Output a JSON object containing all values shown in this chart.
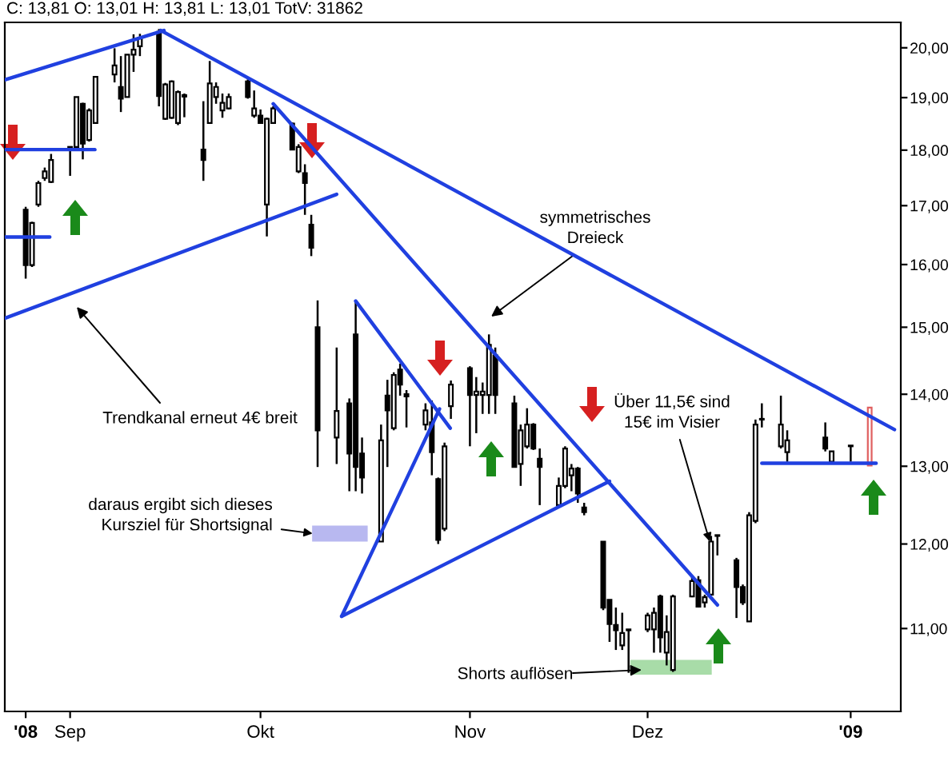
{
  "chart_data": {
    "type": "candlestick",
    "title": "C: 13,81 O: 13,01 H: 13,81 L: 13,01 TotV: 31862",
    "x": [
      "2008-08-25",
      "2008-08-26",
      "2008-08-27",
      "2008-08-28",
      "2008-08-29",
      "2008-09-01",
      "2008-09-02",
      "2008-09-03",
      "2008-09-04",
      "2008-09-05",
      "2008-09-08",
      "2008-09-09",
      "2008-09-10",
      "2008-09-11",
      "2008-09-12",
      "2008-09-15",
      "2008-09-16",
      "2008-09-17",
      "2008-09-18",
      "2008-09-19",
      "2008-09-22",
      "2008-09-23",
      "2008-09-24",
      "2008-09-25",
      "2008-09-26",
      "2008-09-29",
      "2008-09-30",
      "2008-10-01",
      "2008-10-02",
      "2008-10-03",
      "2008-10-06",
      "2008-10-07",
      "2008-10-08",
      "2008-10-09",
      "2008-10-10",
      "2008-10-13",
      "2008-10-15",
      "2008-10-16",
      "2008-10-17",
      "2008-10-20",
      "2008-10-21",
      "2008-10-22",
      "2008-10-23",
      "2008-10-24",
      "2008-10-27",
      "2008-10-28",
      "2008-10-29",
      "2008-10-30",
      "2008-10-31",
      "2008-11-03",
      "2008-11-04",
      "2008-11-05",
      "2008-11-06",
      "2008-11-07",
      "2008-11-10",
      "2008-11-11",
      "2008-11-12",
      "2008-11-13",
      "2008-11-14",
      "2008-11-17",
      "2008-11-18",
      "2008-11-19",
      "2008-11-20",
      "2008-11-21",
      "2008-11-24",
      "2008-11-25",
      "2008-11-26",
      "2008-11-27",
      "2008-11-28",
      "2008-12-01",
      "2008-12-02",
      "2008-12-03",
      "2008-12-04",
      "2008-12-05",
      "2008-12-08",
      "2008-12-09",
      "2008-12-10",
      "2008-12-11",
      "2008-12-12",
      "2008-12-15",
      "2008-12-16",
      "2008-12-17",
      "2008-12-18",
      "2008-12-19",
      "2008-12-22",
      "2008-12-23",
      "2008-12-29",
      "2008-12-30",
      "2009-01-02",
      "2009-01-05"
    ],
    "ohlc": [
      [
        16.93,
        16.98,
        15.77,
        15.99
      ],
      [
        15.99,
        16.72,
        15.96,
        16.7
      ],
      [
        17.02,
        17.44,
        16.98,
        17.4
      ],
      [
        17.49,
        17.68,
        17.44,
        17.61
      ],
      [
        17.42,
        17.93,
        17.4,
        17.82
      ],
      [
        18.04,
        18.07,
        17.53,
        18.06
      ],
      [
        18.06,
        19.01,
        18.04,
        19.01
      ],
      [
        18.88,
        18.9,
        17.83,
        18.12
      ],
      [
        18.19,
        18.79,
        18.16,
        18.75
      ],
      [
        18.51,
        19.41,
        18.5,
        19.41
      ],
      [
        19.46,
        19.99,
        19.3,
        19.64
      ],
      [
        19.21,
        19.83,
        18.72,
        18.98
      ],
      [
        19.01,
        19.86,
        19.01,
        19.86
      ],
      [
        19.86,
        20.28,
        19.51,
        19.96
      ],
      [
        20.03,
        20.29,
        19.83,
        20.21
      ],
      [
        20.33,
        20.39,
        18.83,
        19.03
      ],
      [
        18.59,
        19.29,
        18.57,
        19.26
      ],
      [
        18.61,
        19.34,
        18.59,
        19.32
      ],
      [
        18.51,
        19.14,
        18.47,
        19.11
      ],
      [
        19.02,
        19.08,
        18.62,
        19.05
      ],
      [
        18.01,
        18.93,
        17.44,
        17.82
      ],
      [
        18.51,
        19.73,
        18.5,
        19.28
      ],
      [
        19.01,
        19.3,
        18.88,
        19.21
      ],
      [
        18.75,
        19.08,
        18.61,
        18.9
      ],
      [
        18.79,
        19.08,
        18.77,
        19.01
      ],
      [
        19.32,
        19.36,
        18.98,
        19.01
      ],
      [
        18.65,
        19.14,
        18.61,
        18.79
      ],
      [
        18.65,
        18.77,
        18.5,
        18.51
      ],
      [
        17.02,
        18.61,
        16.47,
        18.59
      ],
      [
        18.51,
        18.83,
        18.5,
        18.79
      ],
      [
        18.5,
        18.52,
        18.0,
        18.01
      ],
      [
        17.61,
        18.11,
        17.58,
        18.06
      ],
      [
        17.58,
        17.74,
        16.84,
        17.4
      ],
      [
        16.67,
        16.84,
        16.14,
        16.28
      ],
      [
        15.0,
        15.42,
        12.99,
        13.49
      ],
      [
        13.39,
        14.69,
        13.03,
        13.76
      ],
      [
        13.87,
        13.94,
        12.67,
        13.17
      ],
      [
        14.89,
        15.42,
        12.67,
        12.99
      ],
      [
        13.17,
        13.39,
        12.64,
        12.85
      ],
      [
        12.03,
        13.57,
        12.03,
        13.35
      ],
      [
        13.98,
        14.21,
        12.99,
        13.77
      ],
      [
        13.52,
        14.32,
        13.49,
        14.28
      ],
      [
        14.36,
        14.45,
        13.98,
        14.14
      ],
      [
        14.0,
        14.06,
        13.53,
        13.97
      ],
      [
        13.57,
        13.87,
        13.49,
        13.77
      ],
      [
        13.6,
        13.91,
        12.88,
        13.19
      ],
      [
        12.83,
        12.85,
        12.0,
        12.05
      ],
      [
        12.19,
        13.32,
        12.16,
        13.27
      ],
      [
        13.83,
        14.2,
        13.65,
        14.14
      ],
      [
        14.38,
        14.41,
        13.27,
        13.99
      ],
      [
        13.99,
        14.25,
        13.45,
        14.04
      ],
      [
        13.99,
        14.17,
        13.72,
        14.04
      ],
      [
        13.99,
        14.89,
        13.72,
        14.73
      ],
      [
        14.57,
        14.69,
        13.72,
        13.99
      ],
      [
        13.87,
        13.98,
        12.99,
        12.99
      ],
      [
        13.03,
        13.57,
        12.74,
        13.49
      ],
      [
        13.27,
        13.8,
        13.24,
        13.57
      ],
      [
        13.57,
        13.59,
        13.22,
        13.24
      ],
      [
        13.1,
        13.24,
        12.49,
        12.99
      ],
      [
        12.49,
        12.85,
        12.46,
        12.74
      ],
      [
        12.74,
        13.27,
        12.71,
        13.24
      ],
      [
        12.88,
        13.03,
        12.67,
        12.97
      ],
      [
        12.97,
        12.99,
        12.52,
        12.64
      ],
      [
        12.46,
        12.52,
        12.36,
        12.4
      ],
      [
        12.03,
        12.03,
        11.21,
        11.24
      ],
      [
        11.33,
        11.33,
        10.85,
        11.05
      ],
      [
        11.04,
        11.24,
        10.76,
        10.98
      ],
      [
        10.81,
        11.18,
        10.76,
        10.95
      ],
      [
        10.98,
        10.99,
        10.51,
        10.99
      ],
      [
        10.99,
        11.18,
        10.96,
        11.15
      ],
      [
        10.99,
        11.24,
        10.73,
        11.18
      ],
      [
        11.37,
        11.39,
        10.73,
        10.9
      ],
      [
        10.73,
        11.15,
        10.59,
        10.96
      ],
      [
        10.54,
        11.39,
        10.52,
        11.37
      ],
      [
        11.37,
        11.61,
        11.36,
        11.55
      ],
      [
        11.56,
        11.61,
        11.24,
        11.25
      ],
      [
        11.3,
        11.39,
        11.24,
        11.36
      ],
      [
        11.39,
        12.1,
        11.39,
        12.03
      ],
      [
        12.1,
        12.11,
        11.86,
        12.11
      ],
      [
        11.8,
        11.83,
        11.12,
        11.48
      ],
      [
        11.48,
        11.51,
        11.27,
        11.3
      ],
      [
        11.08,
        12.4,
        11.08,
        12.36
      ],
      [
        12.29,
        13.64,
        12.26,
        13.57
      ],
      [
        13.64,
        13.87,
        13.53,
        13.65
      ],
      [
        13.27,
        13.98,
        13.24,
        13.57
      ],
      [
        13.19,
        13.49,
        13.06,
        13.35
      ],
      [
        13.39,
        13.6,
        13.2,
        13.24
      ],
      [
        13.06,
        13.2,
        13.03,
        13.2
      ],
      [
        13.27,
        13.28,
        13.06,
        13.28
      ],
      [
        13.01,
        13.81,
        13.01,
        13.81
      ]
    ],
    "colors": [
      "#000000",
      "#000000",
      "#000000",
      "#000000",
      "#000000",
      "#000000",
      "#000000",
      "#000000",
      "#000000",
      "#000000",
      "#000000",
      "#000000",
      "#000000",
      "#000000",
      "#000000",
      "#000000",
      "#000000",
      "#000000",
      "#000000",
      "#000000",
      "#000000",
      "#000000",
      "#000000",
      "#000000",
      "#000000",
      "#000000",
      "#000000",
      "#000000",
      "#000000",
      "#000000",
      "#000000",
      "#000000",
      "#000000",
      "#000000",
      "#000000",
      "#000000",
      "#000000",
      "#000000",
      "#000000",
      "#000000",
      "#000000",
      "#000000",
      "#000000",
      "#000000",
      "#000000",
      "#000000",
      "#000000",
      "#000000",
      "#000000",
      "#000000",
      "#000000",
      "#000000",
      "#000000",
      "#000000",
      "#000000",
      "#000000",
      "#000000",
      "#000000",
      "#000000",
      "#000000",
      "#000000",
      "#000000",
      "#000000",
      "#000000",
      "#000000",
      "#000000",
      "#000000",
      "#000000",
      "#000000",
      "#000000",
      "#000000",
      "#000000",
      "#000000",
      "#000000",
      "#000000",
      "#000000",
      "#000000",
      "#000000",
      "#000000",
      "#000000",
      "#000000",
      "#000000",
      "#000000",
      "#000000",
      "#000000",
      "#000000",
      "#000000",
      "#000000",
      "#000000",
      "#e06060"
    ],
    "series": [
      {
        "type": "line",
        "color": "#2040e0",
        "x": [
          "2008-08-21T17:00",
          "2008-09-15T19:00"
        ],
        "values": [
          19.35,
          20.36
        ]
      },
      {
        "type": "line",
        "color": "#2040e0",
        "x": [
          "2008-08-21T17:00",
          "2008-10-13"
        ],
        "values": [
          15.14,
          17.2
        ]
      },
      {
        "type": "line",
        "color": "#2040e0",
        "x": [
          "2008-08-21T17:00",
          "2008-09-04T21:30"
        ],
        "values": [
          18.01,
          18.01
        ]
      },
      {
        "type": "line",
        "color": "#2040e0",
        "x": [
          "2008-08-21T17:00",
          "2008-08-28T19:00"
        ],
        "values": [
          16.46,
          16.46
        ]
      },
      {
        "type": "line",
        "color": "#2040e0",
        "x": [
          "2008-09-15T07:00",
          "2009-01-08T21:30"
        ],
        "values": [
          20.36,
          13.5
        ]
      },
      {
        "type": "line",
        "color": "#2040e0",
        "x": [
          "2008-10-03",
          "2008-12-12"
        ],
        "values": [
          18.88,
          11.27
        ]
      },
      {
        "type": "line",
        "color": "#2040e0",
        "x": [
          "2008-10-13T19:00",
          "2008-11-25"
        ],
        "values": [
          11.14,
          12.8
        ]
      },
      {
        "type": "line",
        "color": "#2040e0",
        "x": [
          "2008-10-13T19:00",
          "2008-10-29T05:00"
        ],
        "values": [
          11.14,
          13.79
        ]
      },
      {
        "type": "line",
        "color": "#2040e0",
        "x": [
          "2008-10-16",
          "2008-10-30T21:30"
        ],
        "values": [
          15.41,
          13.52
        ]
      },
      {
        "type": "line",
        "color": "#2040e0",
        "x": [
          "2008-12-19",
          "2009-01-06"
        ],
        "values": [
          13.04,
          13.04
        ]
      }
    ],
    "bands": [
      {
        "axis": "y",
        "from": 12.03,
        "to": 12.23,
        "color": "#b8b8f0"
      },
      {
        "axis": "y",
        "from": 10.49,
        "to": 10.65,
        "color": "#a8dca8"
      }
    ],
    "annotations": [
      "symmetrisches\nDreieck",
      "Trendkanal erneut 4€ breit",
      {
        "text": "daraus ergibt sich dieses\nKursziel für Shortsignal",
        "x": "2008-10-09T05:00",
        "y": 12.13
      },
      "Shorts auflösen",
      {
        "text": "Über 11,5€ sind\n15€ im Visier",
        "x": "2008-12-10T19:00",
        "y": 12.03
      }
    ],
    "log": true,
    "xlim": [
      "2008-08-21T17:00",
      "2009-01-09T21:30"
    ],
    "ylim": [
      10.1,
      20.53
    ],
    "xticks": [
      {
        "value": "2008-08-25",
        "label": "'08"
      },
      {
        "value": "2008-09-01",
        "label": "Sep"
      },
      {
        "value": "2008-10-01",
        "label": "Okt"
      },
      {
        "value": "2008-11-03",
        "label": "Nov"
      },
      {
        "value": "2008-12-01",
        "label": "Dez"
      },
      {
        "value": "2009-01-02",
        "label": "'09"
      }
    ],
    "yticks": [
      {
        "value": 11,
        "label": "11,00"
      },
      {
        "value": 12,
        "label": "12,00"
      },
      {
        "value": 13,
        "label": "13,00"
      },
      {
        "value": 14,
        "label": "14,00"
      },
      {
        "value": 15,
        "label": "15,00"
      },
      {
        "value": 16,
        "label": "16,00"
      },
      {
        "value": 17,
        "label": "17,00"
      },
      {
        "value": 18,
        "label": "18,00"
      },
      {
        "value": 19,
        "label": "19,00"
      },
      {
        "value": 20,
        "label": "20,00"
      }
    ],
    "grid": false,
    "legend": false
  }
}
